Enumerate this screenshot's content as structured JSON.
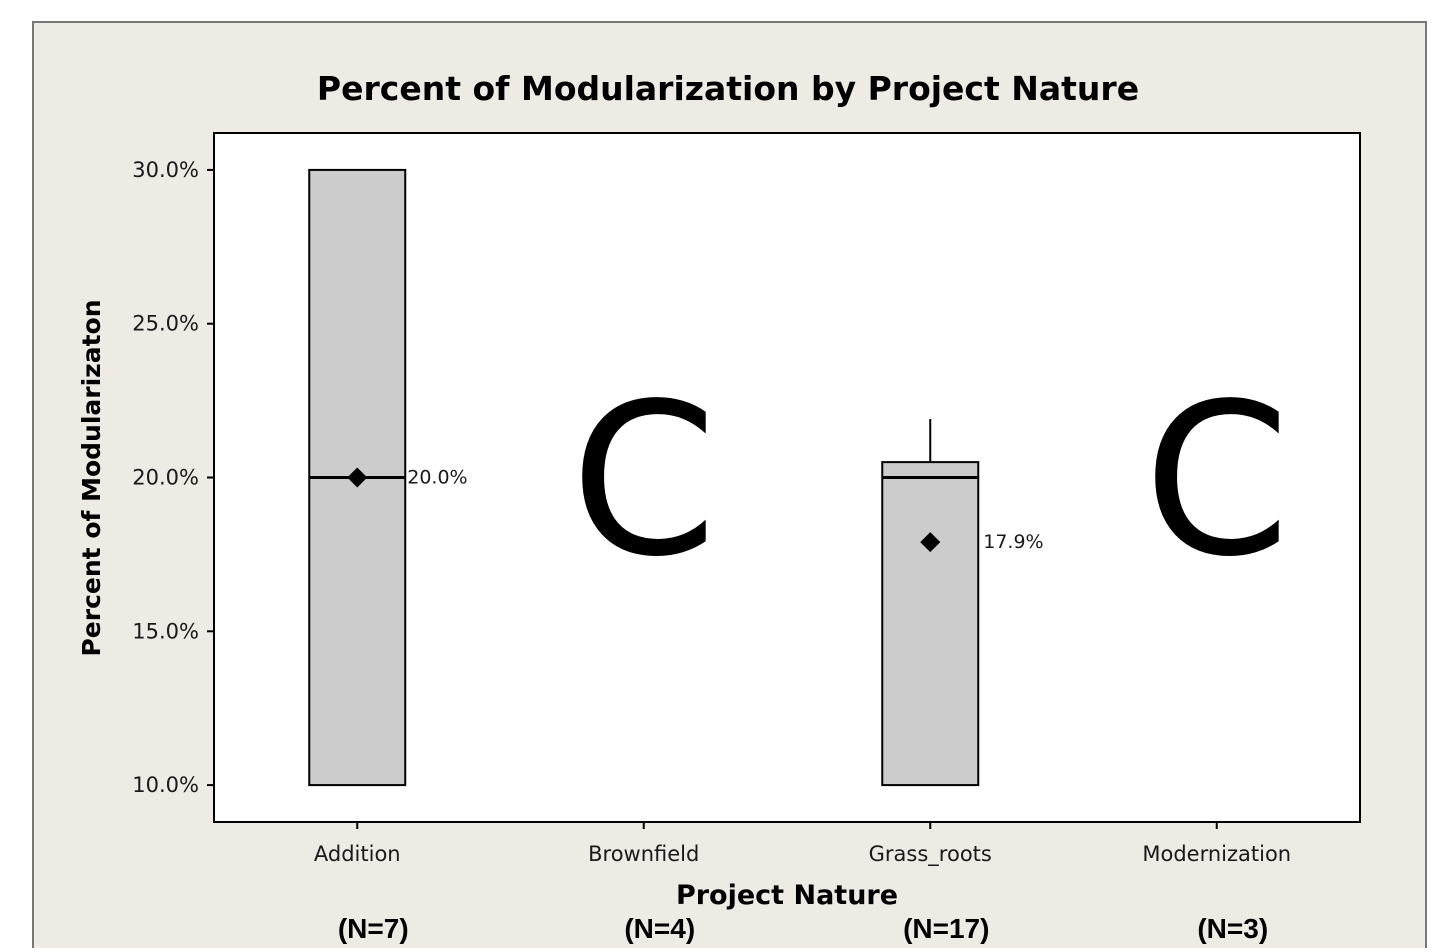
{
  "chart_data": {
    "type": "boxplot",
    "title": "Percent of Modularization by Project Nature",
    "xlabel": "Project Nature",
    "ylabel": "Percent of Modularizaton",
    "ylim": [
      8.8,
      31.2
    ],
    "yticks": [
      {
        "value": 10,
        "label": "10.0%"
      },
      {
        "value": 15,
        "label": "15.0%"
      },
      {
        "value": 20,
        "label": "20.0%"
      },
      {
        "value": 25,
        "label": "25.0%"
      },
      {
        "value": 30,
        "label": "30.0%"
      }
    ],
    "categories": [
      "Addition",
      "Brownfield",
      "Grass_roots",
      "Modernization"
    ],
    "sample_sizes": [
      "(N=7)",
      "(N=4)",
      "(N=17)",
      "(N=3)"
    ],
    "boxes": [
      {
        "category": "Addition",
        "q1": 10.0,
        "median": 20.0,
        "q3": 30.0,
        "whisker_low": 10.0,
        "whisker_high": 30.0,
        "mean": 20.0,
        "mean_label": "20.0%"
      },
      {
        "category": "Brownfield",
        "marker": "C"
      },
      {
        "category": "Grass_roots",
        "q1": 10.0,
        "median": 20.0,
        "q3": 20.5,
        "whisker_low": 10.0,
        "whisker_high": 21.9,
        "mean": 17.9,
        "mean_label": "17.9%"
      },
      {
        "category": "Modernization",
        "marker": "C"
      }
    ],
    "colors": {
      "background": "#eeeae4",
      "box_fill": "#cccccc",
      "stroke": "#000000"
    }
  }
}
